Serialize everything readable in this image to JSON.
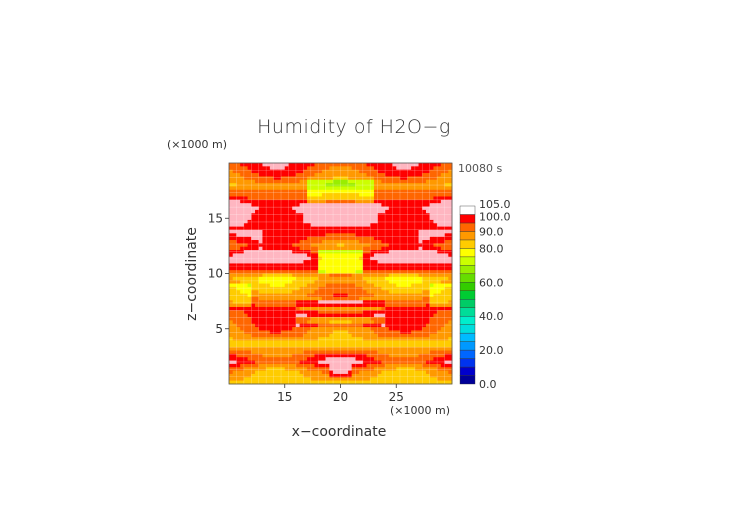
{
  "chart_data": {
    "type": "heatmap",
    "title": "Humidity of H2O−g",
    "time_label": "10080 s",
    "xlabel": "x−coordinate",
    "ylabel": "z−coordinate",
    "x_unit": "(×1000 m)",
    "z_unit": "(×1000 m)",
    "xlim": [
      10,
      30
    ],
    "zlim": [
      0,
      20
    ],
    "x_ticks": [
      "15",
      "20",
      "25"
    ],
    "z_ticks": [
      "5",
      "10",
      "15"
    ],
    "x_tick_values": [
      15,
      20,
      25
    ],
    "z_tick_values": [
      5,
      10,
      15
    ],
    "grid": true,
    "colorbar": {
      "levels": [
        0,
        5,
        10,
        15,
        20,
        25,
        30,
        35,
        40,
        45,
        50,
        55,
        60,
        65,
        70,
        75,
        80,
        85,
        90,
        95,
        100,
        105
      ],
      "labels": [
        "0.0",
        "20.0",
        "40.0",
        "60.0",
        "80.0",
        "90.0",
        "100.0",
        "105.0"
      ],
      "label_values": [
        0,
        20,
        40,
        60,
        80,
        90,
        100,
        105
      ],
      "colors": [
        "#000099",
        "#0000cc",
        "#0033ee",
        "#0066ff",
        "#0099ff",
        "#00bbff",
        "#00dddd",
        "#00eecc",
        "#00dd99",
        "#00cc66",
        "#00cc33",
        "#33cc00",
        "#66dd00",
        "#99ee00",
        "#ccff00",
        "#ffff00",
        "#ffcc00",
        "#ff9900",
        "#ff6600",
        "#ff0000",
        "#ffffff"
      ]
    },
    "field_model": {
      "description_bands": [
        {
          "z": 0.3,
          "value": 84
        },
        {
          "z": 1.2,
          "value": 88
        },
        {
          "z": 2.0,
          "value": 98
        },
        {
          "z": 3.0,
          "value": 90
        },
        {
          "z": 3.6,
          "value": 80
        },
        {
          "z": 4.2,
          "value": 88
        },
        {
          "z": 5.5,
          "value": 93
        },
        {
          "z": 7.0,
          "value": 96
        },
        {
          "z": 8.5,
          "value": 88
        },
        {
          "z": 9.5,
          "value": 82
        },
        {
          "z": 10.5,
          "value": 97
        },
        {
          "z": 11.5,
          "value": 101
        },
        {
          "z": 12.5,
          "value": 90
        },
        {
          "z": 13.5,
          "value": 97
        },
        {
          "z": 14.8,
          "value": 101
        },
        {
          "z": 16.0,
          "value": 102
        },
        {
          "z": 17.0,
          "value": 94
        },
        {
          "z": 18.0,
          "value": 86
        },
        {
          "z": 19.0,
          "value": 92
        },
        {
          "z": 19.8,
          "value": 96
        }
      ]
    }
  }
}
